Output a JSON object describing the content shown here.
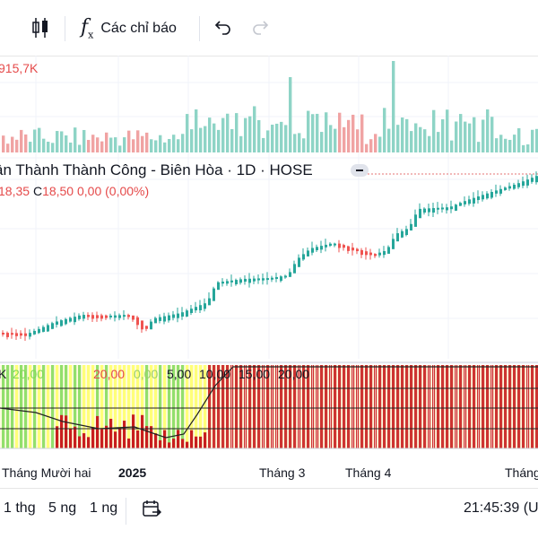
{
  "toolbar": {
    "indicators_label": "Các chỉ báo",
    "icons": [
      "candlestick-icon",
      "function-icon",
      "undo-icon",
      "redo-icon"
    ]
  },
  "volume": {
    "label": "915,7K"
  },
  "symbol": {
    "title": "ân Thành Thành Công - Biên Hòa · 1D · HOSE",
    "ohlc_prefix": "18,35",
    "close_label": "C",
    "close_value": "18,50",
    "change": "0,00 (0,00%)"
  },
  "indicator": {
    "labels": [
      "K",
      "20,00",
      "20,00",
      "0,00",
      "5,00",
      "10,00",
      "15,00",
      "20,00"
    ]
  },
  "xaxis": {
    "labels": [
      "Tháng Mười hai",
      "2025",
      "Tháng 3",
      "Tháng 4",
      "Tháng"
    ]
  },
  "bottombar": {
    "ranges": [
      "1 thg",
      "5 ng",
      "1 ng"
    ],
    "time": "21:45:39 (U"
  },
  "colors": {
    "up": "#26a69a",
    "down": "#ef5350",
    "up_vol": "#8ed4c6",
    "down_vol": "#f0a3a3",
    "ind_red": "#c81e1e",
    "ind_yellow": "#ffff66",
    "ind_green": "#7fd957"
  }
}
